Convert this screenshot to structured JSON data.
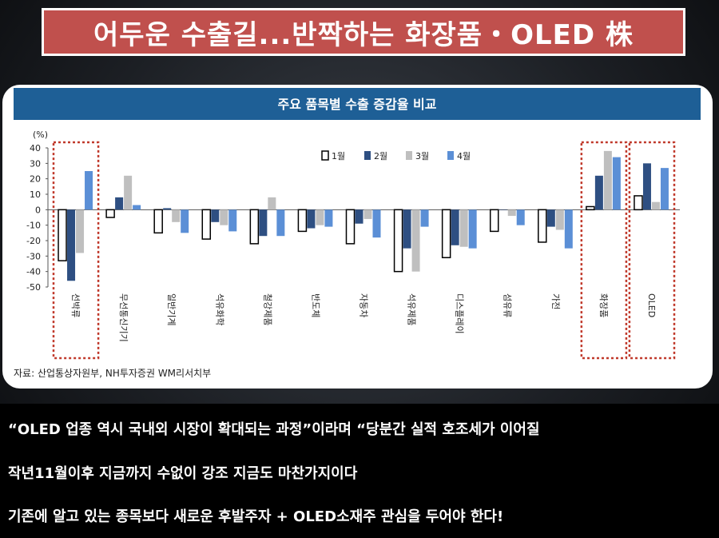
{
  "banner": {
    "title": "어두운 수출길...반짝하는 화장품・OLED 株"
  },
  "chart_data": {
    "type": "bar",
    "title": "주요 품목별 수출 증감율 비교",
    "unit_label": "(%)",
    "categories": [
      "선박류",
      "무선통신기기",
      "일반기계",
      "석유화학",
      "철강제품",
      "반도체",
      "자동차",
      "석유제품",
      "디스플레이",
      "섬유류",
      "가전",
      "화장품",
      "OLED"
    ],
    "series": [
      {
        "name": "1월",
        "color": "#ffffff",
        "values": [
          -33,
          -5,
          -15,
          -19,
          -22,
          -14,
          -22,
          -40,
          -31,
          -14,
          -21,
          2,
          9
        ]
      },
      {
        "name": "2월",
        "color": "#2e4f82",
        "values": [
          -46,
          8,
          1,
          -8,
          -17,
          -12,
          -9,
          -25,
          -23,
          0,
          -11,
          22,
          30
        ]
      },
      {
        "name": "3월",
        "color": "#bfbfbf",
        "values": [
          -28,
          22,
          -8,
          -10,
          8,
          -10,
          -6,
          -40,
          -24,
          -4,
          -13,
          38,
          5
        ]
      },
      {
        "name": "4월",
        "color": "#5b8fd6",
        "values": [
          25,
          3,
          -15,
          -14,
          -17,
          -11,
          -18,
          -11,
          -25,
          -10,
          -25,
          34,
          27
        ]
      }
    ],
    "ylim": [
      -50,
      40
    ],
    "yticks": [
      40,
      30,
      20,
      10,
      0,
      -10,
      -20,
      -30,
      -40,
      -50
    ],
    "highlighted_categories": [
      "선박류",
      "화장품",
      "OLED"
    ],
    "legend_position": "top",
    "source": "자료: 산업통상자원부, NH투자증권 WM리서치부",
    "header_color": "#1e5f96",
    "highlight_color": "#c0392b"
  },
  "text_lines": [
    "“OLED 업종 역시 국내외 시장이 확대되는 과정”이라며 “당분간 실적 호조세가 이어질",
    "작년11월이후 지금까지 수없이 강조 지금도 마찬가지이다",
    "기존에 알고 있는 종목보다 새로운 후발주자 + OLED소재주 관심을 두어야 한다!"
  ]
}
